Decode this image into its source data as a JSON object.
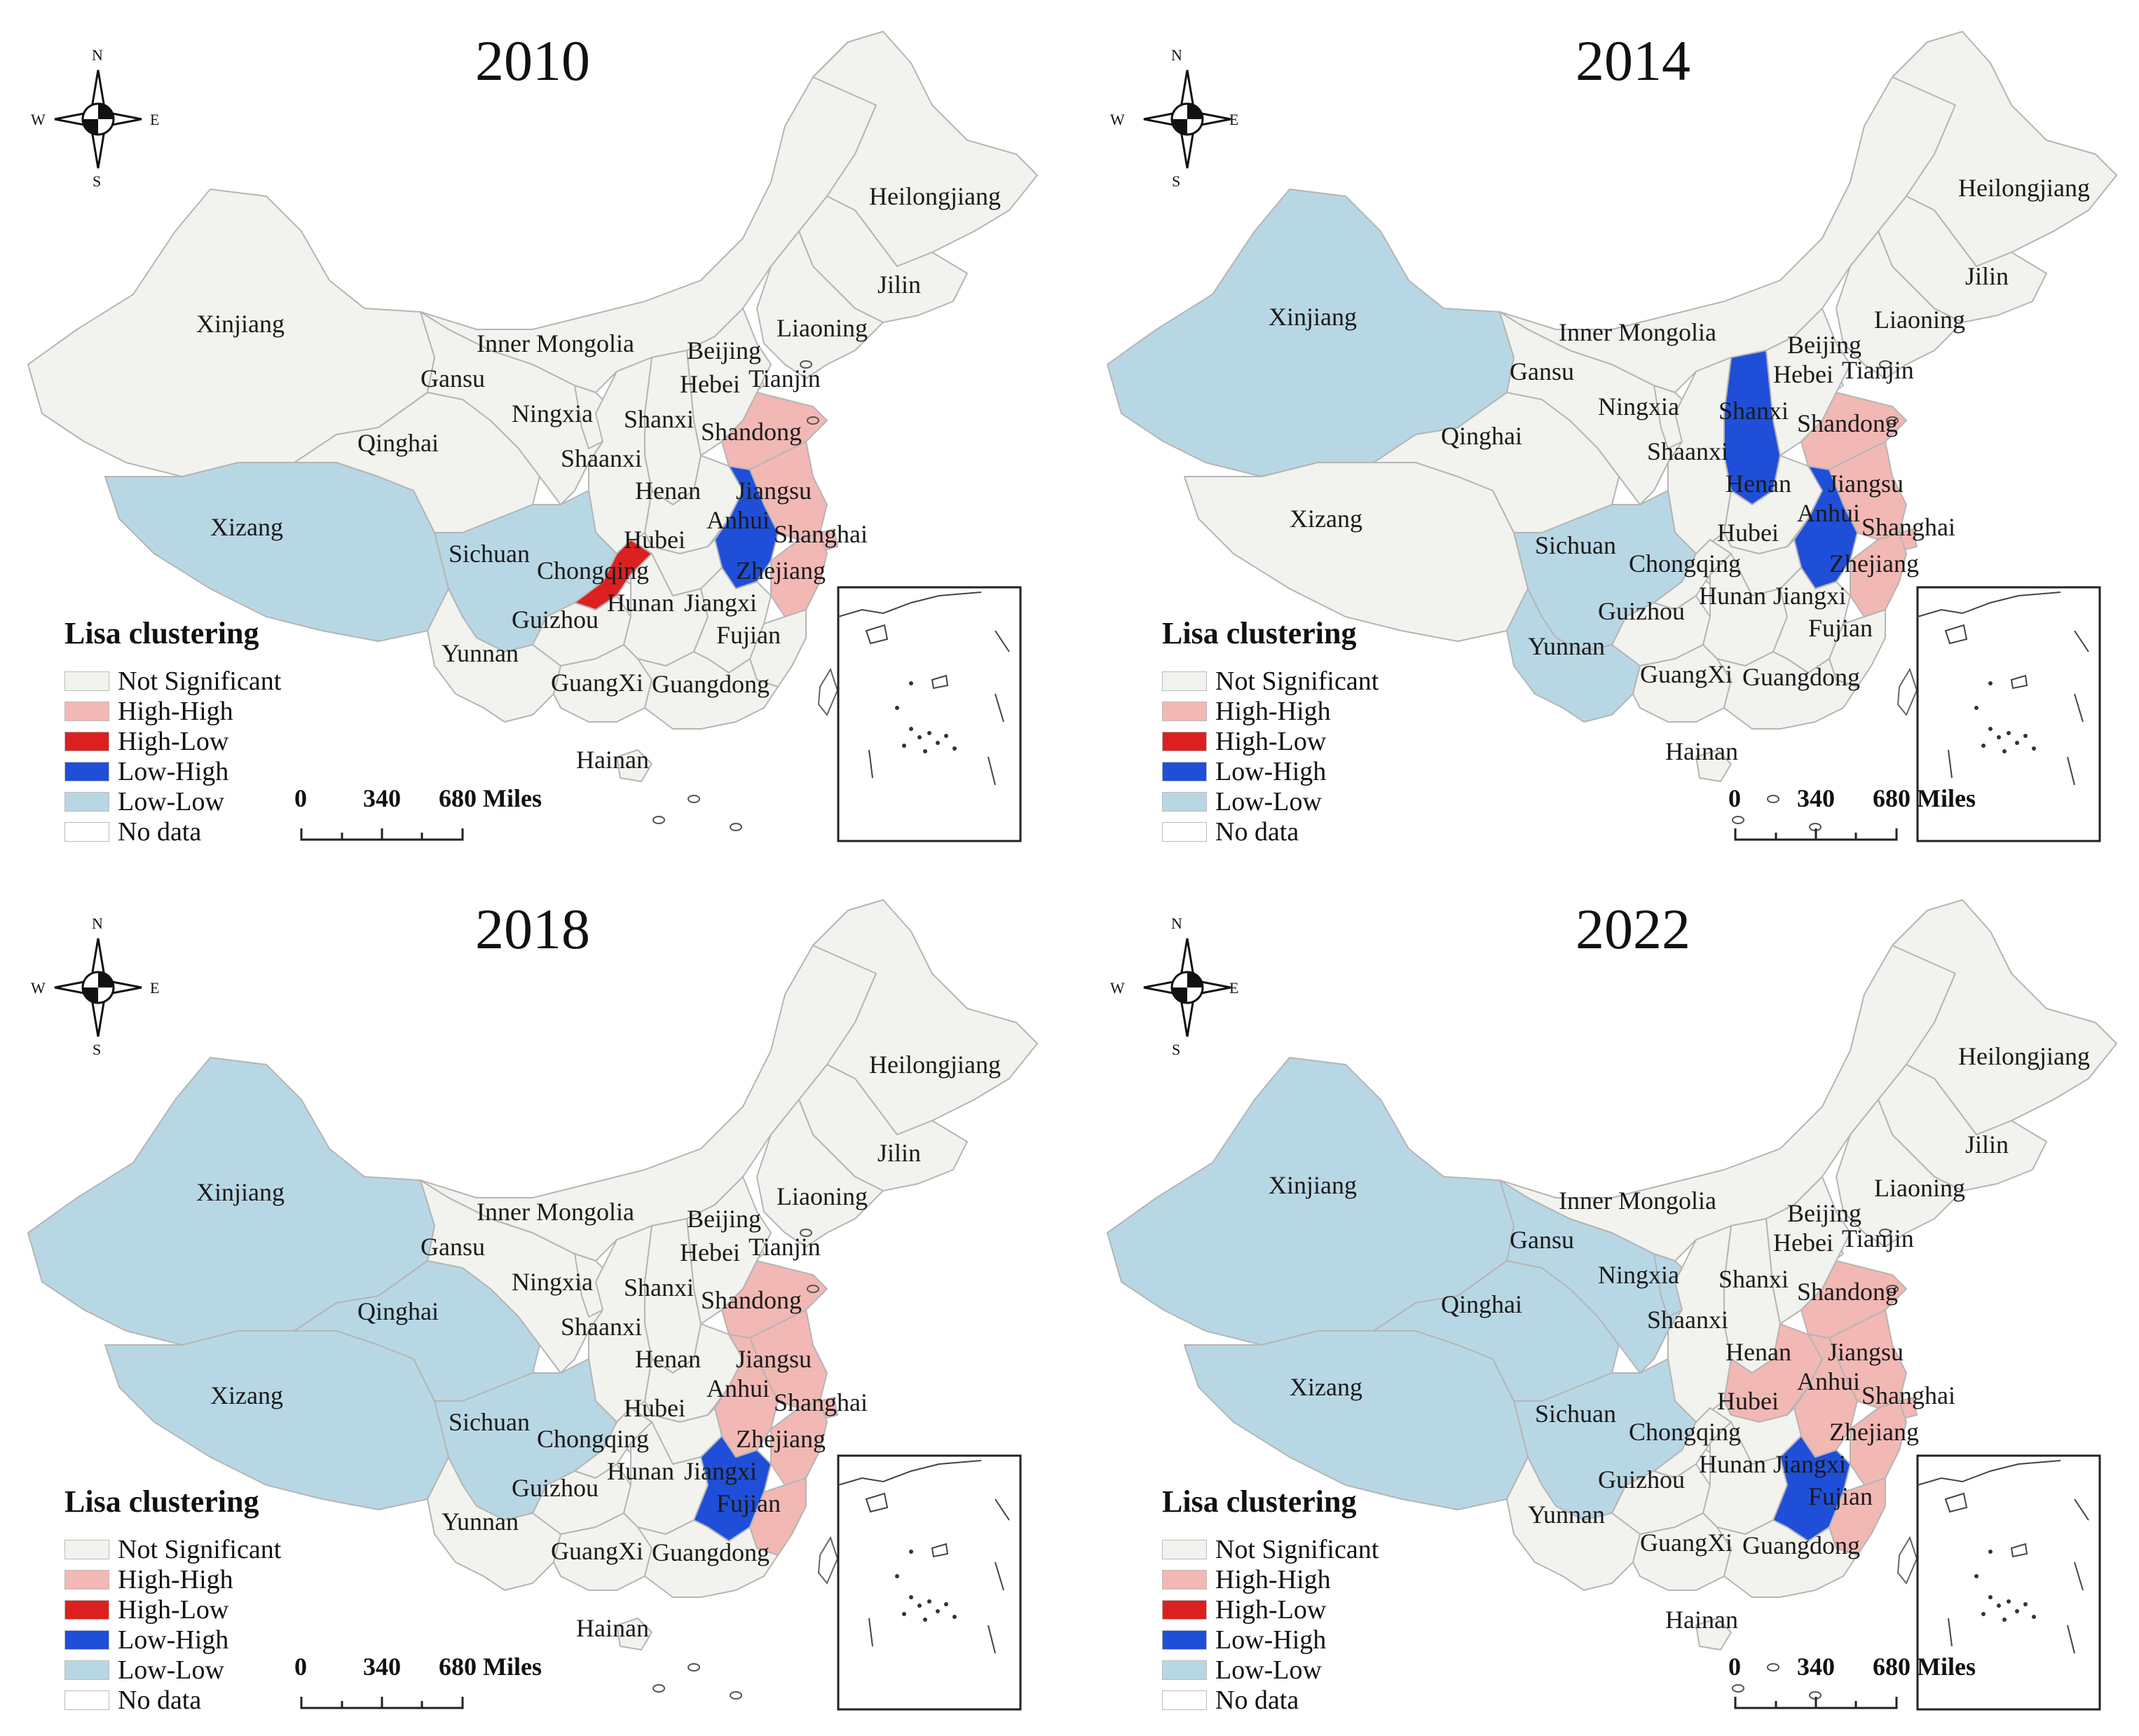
{
  "legend": {
    "title": "Lisa clustering",
    "items": [
      {
        "label": "Not Significant",
        "color": "#f2f2ef"
      },
      {
        "label": "High-High",
        "color": "#f2b8b4"
      },
      {
        "label": "High-Low",
        "color": "#dc2020"
      },
      {
        "label": "Low-High",
        "color": "#1f4fd8"
      },
      {
        "label": "Low-Low",
        "color": "#b8d7e4"
      },
      {
        "label": "No data",
        "color": "#ffffff"
      }
    ]
  },
  "scale": {
    "zero": "0",
    "mid": "340",
    "end": "680 Miles"
  },
  "compass": {
    "n": "N",
    "s": "S",
    "e": "E",
    "w": "W"
  },
  "panels": [
    {
      "year": "2010",
      "provinces": {
        "Xinjiang": "Not Significant",
        "Xizang": "Low-Low",
        "Qinghai": "Not Significant",
        "Gansu": "Not Significant",
        "Inner Mongolia": "Not Significant",
        "Heilongjiang": "Not Significant",
        "Jilin": "Not Significant",
        "Liaoning": "Not Significant",
        "Beijing": "Not Significant",
        "Tianjin": "Not Significant",
        "Hebei": "Not Significant",
        "Shanxi": "Not Significant",
        "Shandong": "High-High",
        "Ningxia": "Not Significant",
        "Shaanxi": "Not Significant",
        "Henan": "Not Significant",
        "Jiangsu": "High-High",
        "Anhui": "Low-High",
        "Shanghai": "High-High",
        "Zhejiang": "High-High",
        "Hubei": "Not Significant",
        "Sichuan": "Low-Low",
        "Chongqing": "High-Low",
        "Guizhou": "Not Significant",
        "Hunan": "Not Significant",
        "Jiangxi": "Not Significant",
        "Fujian": "Not Significant",
        "Yunnan": "Not Significant",
        "GuangXi": "Not Significant",
        "Guangdong": "Not Significant",
        "Hainan": "Not Significant"
      }
    },
    {
      "year": "2014",
      "provinces": {
        "Xinjiang": "Low-Low",
        "Xizang": "Not Significant",
        "Qinghai": "Not Significant",
        "Gansu": "Not Significant",
        "Inner Mongolia": "Not Significant",
        "Heilongjiang": "Not Significant",
        "Jilin": "Not Significant",
        "Liaoning": "Not Significant",
        "Beijing": "Not Significant",
        "Tianjin": "Not Significant",
        "Hebei": "Not Significant",
        "Shanxi": "Low-High",
        "Shandong": "High-High",
        "Ningxia": "Not Significant",
        "Shaanxi": "Not Significant",
        "Henan": "Not Significant",
        "Jiangsu": "High-High",
        "Anhui": "Low-High",
        "Shanghai": "High-High",
        "Zhejiang": "High-High",
        "Hubei": "Not Significant",
        "Sichuan": "Low-Low",
        "Chongqing": "Not Significant",
        "Guizhou": "Not Significant",
        "Hunan": "Not Significant",
        "Jiangxi": "Not Significant",
        "Fujian": "Not Significant",
        "Yunnan": "Low-Low",
        "GuangXi": "Not Significant",
        "Guangdong": "Not Significant",
        "Hainan": "Not Significant"
      }
    },
    {
      "year": "2018",
      "provinces": {
        "Xinjiang": "Low-Low",
        "Xizang": "Low-Low",
        "Qinghai": "Low-Low",
        "Gansu": "Not Significant",
        "Inner Mongolia": "Not Significant",
        "Heilongjiang": "Not Significant",
        "Jilin": "Not Significant",
        "Liaoning": "Not Significant",
        "Beijing": "Not Significant",
        "Tianjin": "Not Significant",
        "Hebei": "Not Significant",
        "Shanxi": "Not Significant",
        "Shandong": "High-High",
        "Ningxia": "Not Significant",
        "Shaanxi": "Not Significant",
        "Henan": "Not Significant",
        "Jiangsu": "High-High",
        "Anhui": "High-High",
        "Shanghai": "High-High",
        "Zhejiang": "High-High",
        "Hubei": "Not Significant",
        "Sichuan": "Low-Low",
        "Chongqing": "Not Significant",
        "Guizhou": "Not Significant",
        "Hunan": "Not Significant",
        "Jiangxi": "Low-High",
        "Fujian": "High-High",
        "Yunnan": "Not Significant",
        "GuangXi": "Not Significant",
        "Guangdong": "Not Significant",
        "Hainan": "Not Significant"
      }
    },
    {
      "year": "2022",
      "provinces": {
        "Xinjiang": "Low-Low",
        "Xizang": "Low-Low",
        "Qinghai": "Low-Low",
        "Gansu": "Low-Low",
        "Inner Mongolia": "Not Significant",
        "Heilongjiang": "Not Significant",
        "Jilin": "Not Significant",
        "Liaoning": "Not Significant",
        "Beijing": "Not Significant",
        "Tianjin": "Not Significant",
        "Hebei": "Not Significant",
        "Shanxi": "Not Significant",
        "Shandong": "High-High",
        "Ningxia": "Low-Low",
        "Shaanxi": "Not Significant",
        "Henan": "High-High",
        "Jiangsu": "High-High",
        "Anhui": "High-High",
        "Shanghai": "High-High",
        "Zhejiang": "High-High",
        "Hubei": "Not Significant",
        "Sichuan": "Low-Low",
        "Chongqing": "Not Significant",
        "Guizhou": "Not Significant",
        "Hunan": "Not Significant",
        "Jiangxi": "Low-High",
        "Fujian": "High-High",
        "Yunnan": "Not Significant",
        "GuangXi": "Not Significant",
        "Guangdong": "Not Significant",
        "Hainan": "Not Significant"
      }
    }
  ]
}
